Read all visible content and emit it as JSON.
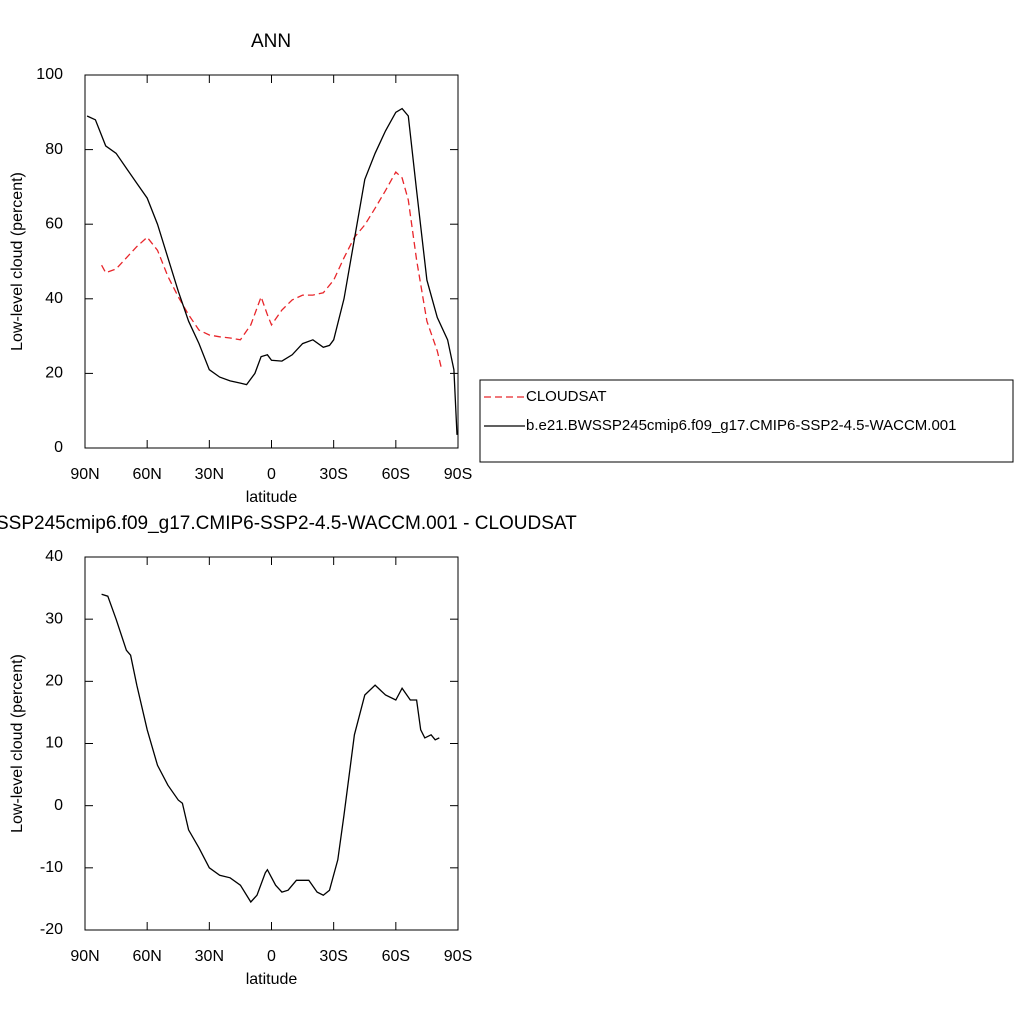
{
  "chart_data": [
    {
      "type": "line",
      "title": "ANN",
      "xlabel": "latitude",
      "ylabel": "Low-level cloud (percent)",
      "xlim": [
        90,
        -90
      ],
      "xticks": [
        {
          "value": 90,
          "label": "90N"
        },
        {
          "value": 60,
          "label": "60N"
        },
        {
          "value": 30,
          "label": "30N"
        },
        0,
        {
          "value": -30,
          "label": "30S"
        },
        {
          "value": -60,
          "label": "60S"
        },
        {
          "value": -90,
          "label": "90S"
        }
      ],
      "ylim": [
        0,
        100
      ],
      "yticks": [
        0,
        20,
        40,
        60,
        80,
        100
      ],
      "legend": "right",
      "series": [
        {
          "name": "CLOUDSAT",
          "color": "#e8262b",
          "dashed": true,
          "x": [
            82,
            80,
            75,
            70,
            65,
            60,
            55,
            50,
            45,
            40,
            35,
            30,
            25,
            20,
            15,
            10,
            5,
            2,
            0,
            -5,
            -10,
            -15,
            -20,
            -25,
            -30,
            -35,
            -40,
            -45,
            -50,
            -55,
            -60,
            -63,
            -66,
            -70,
            -75,
            -80,
            -82
          ],
          "values": [
            49,
            47,
            48,
            51,
            54,
            56.5,
            53,
            46,
            40.5,
            35.7,
            31.6,
            30.3,
            29.8,
            29.5,
            29,
            33,
            40.5,
            35.7,
            33,
            37,
            39.7,
            41,
            41,
            41.6,
            45,
            51,
            56.5,
            59.8,
            64.3,
            69,
            74,
            72.4,
            66.5,
            50.4,
            34,
            26,
            21.4
          ]
        },
        {
          "name": "b.e21.BWSSP245cmip6.f09_g17.CMIP6-SSP2-4.5-WACCM.001",
          "color": "#000000",
          "dashed": false,
          "x": [
            89,
            85,
            80,
            75,
            70,
            65,
            60,
            55,
            50,
            45,
            40,
            35,
            30,
            25,
            20,
            15,
            12,
            8,
            5,
            2,
            0,
            -5,
            -10,
            -15,
            -20,
            -25,
            -28,
            -30,
            -35,
            -40,
            -45,
            -50,
            -55,
            -60,
            -63,
            -66,
            -70,
            -75,
            -80,
            -85,
            -88,
            -89.5
          ],
          "values": [
            89,
            88,
            81,
            79,
            75,
            71,
            67,
            60,
            51,
            42,
            34,
            28,
            21,
            19,
            18,
            17.4,
            17,
            20,
            24.5,
            25,
            23.5,
            23.3,
            25,
            28,
            29,
            27,
            27.5,
            29,
            40,
            56,
            72,
            79,
            85,
            90,
            91,
            89,
            69,
            45,
            35,
            29,
            21,
            3.5
          ]
        }
      ]
    },
    {
      "type": "line",
      "title": "SSP245cmip6.f09_g17.CMIP6-SSP2-4.5-WACCM.001 - CLOUDSAT",
      "xlabel": "latitude",
      "ylabel": "Low-level cloud (percent)",
      "xlim": [
        90,
        -90
      ],
      "xticks": [
        {
          "value": 90,
          "label": "90N"
        },
        {
          "value": 60,
          "label": "60N"
        },
        {
          "value": 30,
          "label": "30N"
        },
        0,
        {
          "value": -30,
          "label": "30S"
        },
        {
          "value": -60,
          "label": "60S"
        },
        {
          "value": -90,
          "label": "90S"
        }
      ],
      "ylim": [
        -20,
        40
      ],
      "yticks": [
        -20,
        -10,
        0,
        10,
        20,
        30,
        40
      ],
      "color": "#000000",
      "x": [
        82,
        79,
        75,
        70,
        68,
        65,
        60,
        55,
        50,
        45,
        43,
        40,
        35,
        30,
        25,
        20,
        15,
        10,
        7,
        3,
        2,
        -2,
        -5,
        -8,
        -12,
        -18,
        -22,
        -25,
        -28,
        -32,
        -35,
        -40,
        -45,
        -50,
        -55,
        -60,
        -63,
        -67,
        -70,
        -72,
        -74,
        -77,
        -79,
        -81
      ],
      "values": [
        34,
        33.7,
        30,
        25,
        24.2,
        19.4,
        12.2,
        6.5,
        3.3,
        0.9,
        0.4,
        -3.9,
        -6.8,
        -10,
        -11.2,
        -11.6,
        -12.8,
        -15.5,
        -14.4,
        -10.8,
        -10.3,
        -12.8,
        -13.9,
        -13.6,
        -12,
        -12,
        -13.9,
        -14.4,
        -13.6,
        -8.7,
        -1.5,
        11.4,
        17.8,
        19.4,
        17.8,
        17,
        18.9,
        17,
        17,
        12.2,
        10.9,
        11.4,
        10.6,
        10.9
      ]
    }
  ]
}
